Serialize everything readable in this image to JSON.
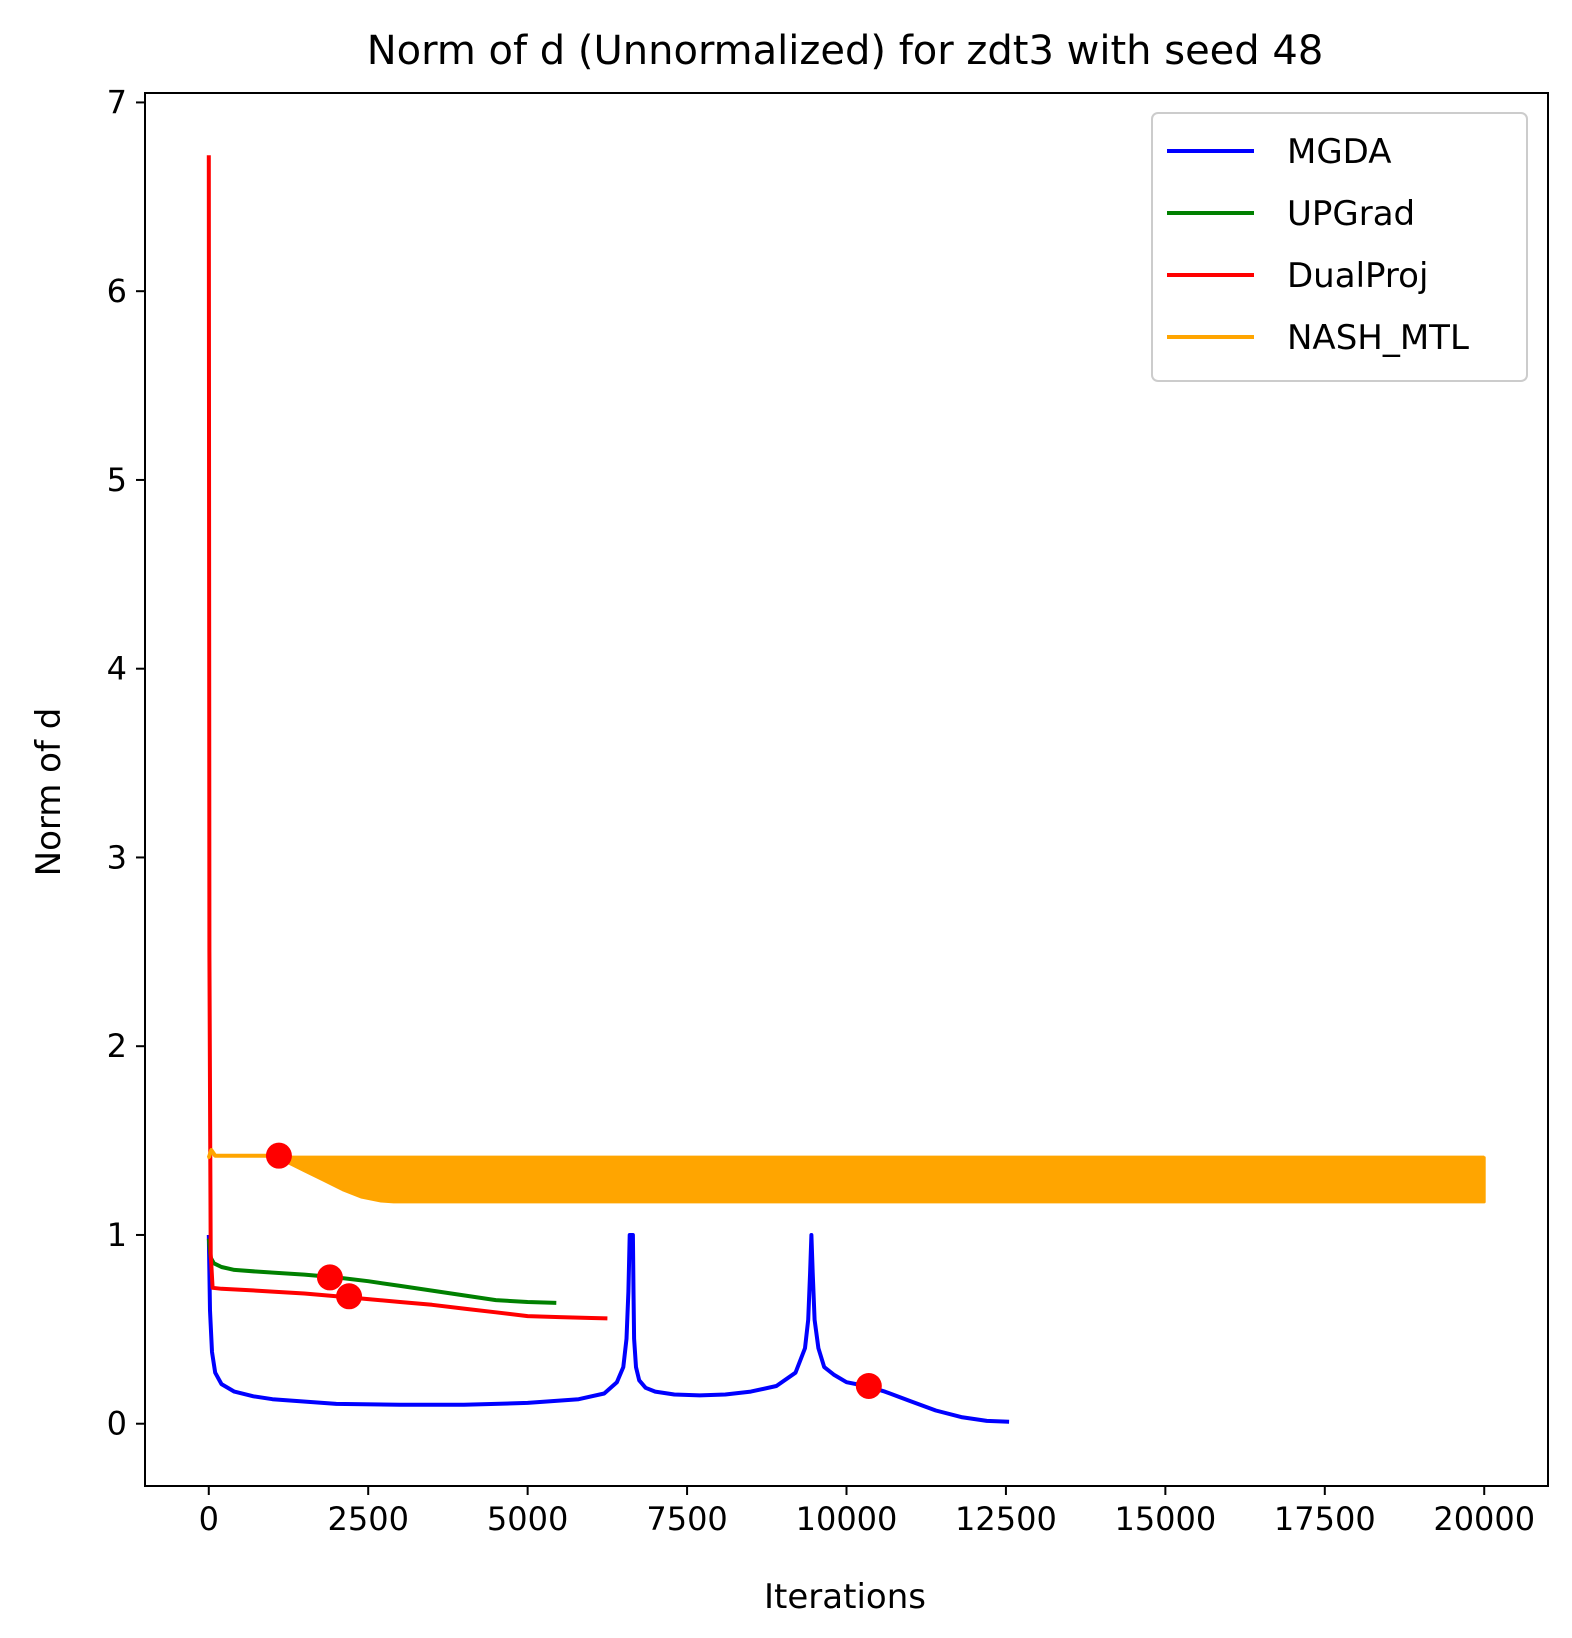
{
  "chart_data": {
    "type": "line",
    "title": "Norm of d (Unnormalized) for zdt3 with seed 48",
    "xlabel": "Iterations",
    "ylabel": "Norm of d",
    "xlim": [
      -1000,
      21000
    ],
    "ylim": [
      -0.33,
      7.05
    ],
    "xticks": [
      0,
      2500,
      5000,
      7500,
      10000,
      12500,
      15000,
      17500,
      20000
    ],
    "xtick_labels": [
      "0",
      "2500",
      "5000",
      "7500",
      "10000",
      "12500",
      "15000",
      "17500",
      "20000"
    ],
    "yticks": [
      0,
      1,
      2,
      3,
      4,
      5,
      6,
      7
    ],
    "ytick_labels": [
      "0",
      "1",
      "2",
      "3",
      "4",
      "5",
      "6",
      "7"
    ],
    "grid": false,
    "legend_position": "top-right",
    "series": [
      {
        "name": "MGDA",
        "color": "#0000ff",
        "x": [
          0,
          5,
          20,
          50,
          100,
          200,
          400,
          700,
          1000,
          2000,
          3000,
          4000,
          5000,
          5800,
          6200,
          6400,
          6500,
          6550,
          6580,
          6600,
          6610,
          6650,
          6660,
          6670,
          6700,
          6750,
          6850,
          7000,
          7300,
          7700,
          8100,
          8500,
          8900,
          9200,
          9350,
          9400,
          9430,
          9450,
          9470,
          9500,
          9560,
          9650,
          9800,
          10000,
          10300,
          10600,
          11000,
          11400,
          11800,
          12200,
          12550
        ],
        "y": [
          1.0,
          0.9,
          0.6,
          0.38,
          0.27,
          0.21,
          0.17,
          0.145,
          0.13,
          0.105,
          0.1,
          0.1,
          0.11,
          0.13,
          0.16,
          0.22,
          0.3,
          0.45,
          0.7,
          1.0,
          1.0,
          1.0,
          0.7,
          0.45,
          0.3,
          0.23,
          0.19,
          0.17,
          0.155,
          0.15,
          0.155,
          0.17,
          0.2,
          0.27,
          0.4,
          0.55,
          0.8,
          1.0,
          0.8,
          0.55,
          0.4,
          0.3,
          0.26,
          0.22,
          0.2,
          0.17,
          0.12,
          0.07,
          0.035,
          0.015,
          0.01
        ]
      },
      {
        "name": "UPGrad",
        "color": "#008000",
        "x": [
          0,
          30,
          80,
          200,
          400,
          800,
          1500,
          2000,
          2500,
          3000,
          3500,
          4000,
          4500,
          5000,
          5450
        ],
        "y": [
          0.98,
          0.88,
          0.85,
          0.83,
          0.815,
          0.805,
          0.79,
          0.775,
          0.755,
          0.73,
          0.705,
          0.68,
          0.655,
          0.645,
          0.64
        ]
      },
      {
        "name": "DualProj",
        "color": "#ff0000",
        "x": [
          0,
          10,
          30,
          60,
          200,
          500,
          1000,
          1500,
          2000,
          2500,
          3000,
          3500,
          4000,
          4500,
          5000,
          5500,
          6000,
          6250
        ],
        "y": [
          6.72,
          2.5,
          0.9,
          0.72,
          0.715,
          0.71,
          0.7,
          0.69,
          0.675,
          0.66,
          0.645,
          0.63,
          0.61,
          0.59,
          0.57,
          0.565,
          0.56,
          0.558
        ]
      },
      {
        "name": "NASH_MTL",
        "color": "#ffa500",
        "x": [
          0,
          40,
          100,
          1000,
          1200,
          1500,
          1800,
          2100,
          2400,
          2700,
          2900,
          3500,
          5000,
          10000,
          15000,
          20000
        ],
        "y": [
          1.41,
          1.45,
          1.42,
          1.42,
          1.41,
          1.41,
          1.41,
          1.41,
          1.41,
          1.41,
          1.41,
          1.41,
          1.41,
          1.41,
          1.41,
          1.41
        ],
        "y_lower": [
          1.41,
          1.45,
          1.42,
          1.42,
          1.39,
          1.34,
          1.29,
          1.24,
          1.2,
          1.18,
          1.175,
          1.175,
          1.175,
          1.175,
          1.175,
          1.175
        ]
      }
    ],
    "markers": [
      {
        "x": 1100,
        "y": 1.42,
        "color": "#ff0000"
      },
      {
        "x": 1900,
        "y": 0.775,
        "color": "#ff0000"
      },
      {
        "x": 2200,
        "y": 0.675,
        "color": "#ff0000"
      },
      {
        "x": 10350,
        "y": 0.2,
        "color": "#ff0000"
      }
    ]
  }
}
